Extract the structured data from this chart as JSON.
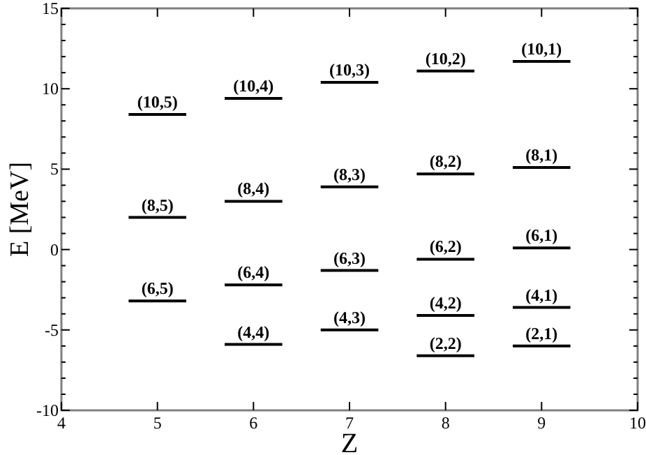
{
  "chart_data": {
    "type": "line",
    "xlabel": "Z",
    "ylabel": "E [MeV]",
    "marker": "none",
    "grid": false,
    "xlim": [
      4,
      10
    ],
    "xticks": [
      4,
      5,
      6,
      7,
      8,
      9,
      10
    ],
    "ylim": [
      -10,
      15
    ],
    "yticks": [
      -10,
      {
        "value": -9,
        "label": null
      },
      {
        "value": -8,
        "label": null
      },
      {
        "value": -7,
        "label": null
      },
      {
        "value": -6,
        "label": null
      },
      -5,
      {
        "value": -4,
        "label": null
      },
      {
        "value": -3,
        "label": null
      },
      {
        "value": -2,
        "label": null
      },
      {
        "value": -1,
        "label": null
      },
      0,
      {
        "value": 1,
        "label": null
      },
      {
        "value": 2,
        "label": null
      },
      {
        "value": 3,
        "label": null
      },
      {
        "value": 4,
        "label": null
      },
      5,
      {
        "value": 6,
        "label": null
      },
      {
        "value": 7,
        "label": null
      },
      {
        "value": 8,
        "label": null
      },
      {
        "value": 9,
        "label": null
      },
      10,
      {
        "value": 11,
        "label": null
      },
      {
        "value": 12,
        "label": null
      },
      {
        "value": 13,
        "label": null
      },
      {
        "value": 14,
        "label": null
      },
      15
    ],
    "series": [
      {
        "color": "#000000",
        "x": [
          4.7,
          5.3
        ],
        "values": [
          8.4,
          8.4
        ]
      },
      {
        "color": "#000000",
        "x": [
          5.7,
          6.3
        ],
        "values": [
          9.4,
          9.4
        ]
      },
      {
        "color": "#000000",
        "x": [
          6.7,
          7.3
        ],
        "values": [
          10.4,
          10.4
        ]
      },
      {
        "color": "#000000",
        "x": [
          7.7,
          8.3
        ],
        "values": [
          11.1,
          11.1
        ]
      },
      {
        "color": "#000000",
        "x": [
          8.7,
          9.3
        ],
        "values": [
          11.7,
          11.7
        ]
      },
      {
        "color": "#000000",
        "x": [
          4.7,
          5.3
        ],
        "values": [
          2,
          2
        ]
      },
      {
        "color": "#000000",
        "x": [
          5.7,
          6.3
        ],
        "values": [
          3,
          3
        ]
      },
      {
        "color": "#000000",
        "x": [
          6.7,
          7.3
        ],
        "values": [
          3.9,
          3.9
        ]
      },
      {
        "color": "#000000",
        "x": [
          7.7,
          8.3
        ],
        "values": [
          4.7,
          4.7
        ]
      },
      {
        "color": "#000000",
        "x": [
          8.7,
          9.3
        ],
        "values": [
          5.1,
          5.1
        ]
      },
      {
        "color": "#000000",
        "x": [
          4.7,
          5.3
        ],
        "values": [
          -3.2,
          -3.2
        ]
      },
      {
        "color": "#000000",
        "x": [
          5.7,
          6.3
        ],
        "values": [
          -2.2,
          -2.2
        ]
      },
      {
        "color": "#000000",
        "x": [
          6.7,
          7.3
        ],
        "values": [
          -1.3,
          -1.3
        ]
      },
      {
        "color": "#000000",
        "x": [
          7.7,
          8.3
        ],
        "values": [
          -0.6,
          -0.6
        ]
      },
      {
        "color": "#000000",
        "x": [
          8.7,
          9.3
        ],
        "values": [
          0.1,
          0.1
        ]
      },
      {
        "color": "#000000",
        "x": [
          5.7,
          6.3
        ],
        "values": [
          -5.9,
          -5.9
        ]
      },
      {
        "color": "#000000",
        "x": [
          6.7,
          7.3
        ],
        "values": [
          -5,
          -5
        ]
      },
      {
        "color": "#000000",
        "x": [
          7.7,
          8.3
        ],
        "values": [
          -4.1,
          -4.1
        ]
      },
      {
        "color": "#000000",
        "x": [
          8.7,
          9.3
        ],
        "values": [
          -3.6,
          -3.6
        ]
      },
      {
        "color": "#000000",
        "x": [
          7.7,
          8.3
        ],
        "values": [
          -6.6,
          -6.6
        ]
      },
      {
        "color": "#000000",
        "x": [
          8.7,
          9.3
        ],
        "values": [
          -6,
          -6
        ]
      }
    ],
    "annotations": [
      {
        "text": "(10,5)",
        "x": 5,
        "y": 8.4
      },
      {
        "text": "(10,4)",
        "x": 6,
        "y": 9.4
      },
      {
        "text": "(10,3)",
        "x": 7,
        "y": 10.4
      },
      {
        "text": "(10,2)",
        "x": 8,
        "y": 11.1
      },
      {
        "text": "(10,1)",
        "x": 9,
        "y": 11.7
      },
      {
        "text": "(8,5)",
        "x": 5,
        "y": 2
      },
      {
        "text": "(8,4)",
        "x": 6,
        "y": 3
      },
      {
        "text": "(8,3)",
        "x": 7,
        "y": 3.9
      },
      {
        "text": "(8,2)",
        "x": 8,
        "y": 4.7
      },
      {
        "text": "(8,1)",
        "x": 9,
        "y": 5.1
      },
      {
        "text": "(6,5)",
        "x": 5,
        "y": -3.2
      },
      {
        "text": "(6,4)",
        "x": 6,
        "y": -2.2
      },
      {
        "text": "(6,3)",
        "x": 7,
        "y": -1.3
      },
      {
        "text": "(6,2)",
        "x": 8,
        "y": -0.6
      },
      {
        "text": "(6,1)",
        "x": 9,
        "y": 0.1
      },
      {
        "text": "(4,4)",
        "x": 6,
        "y": -5.9
      },
      {
        "text": "(4,3)",
        "x": 7,
        "y": -5
      },
      {
        "text": "(4,2)",
        "x": 8,
        "y": -4.1
      },
      {
        "text": "(4,1)",
        "x": 9,
        "y": -3.6
      },
      {
        "text": "(2,2)",
        "x": 8,
        "y": -6.6
      },
      {
        "text": "(2,1)",
        "x": 9,
        "y": -6
      }
    ]
  }
}
